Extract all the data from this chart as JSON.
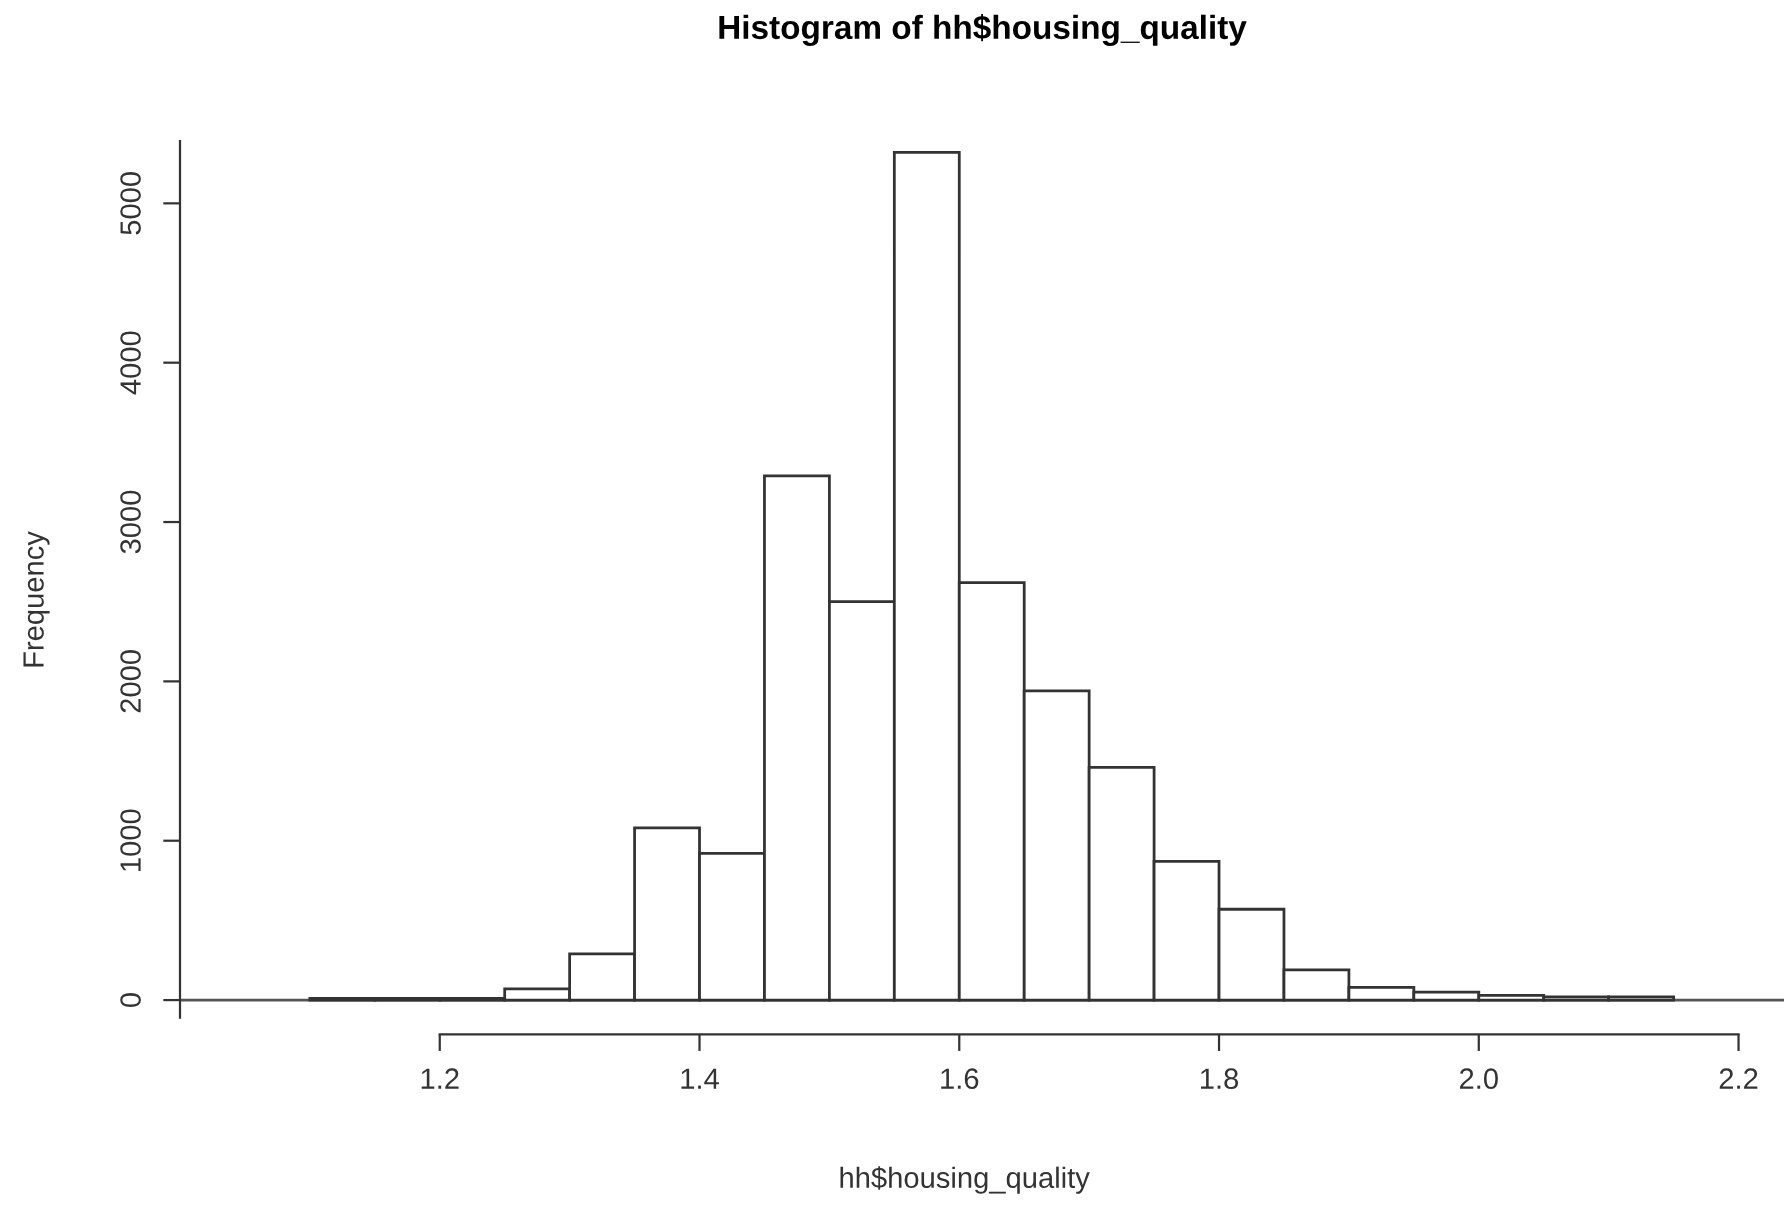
{
  "chart_data": {
    "type": "histogram",
    "title": "Histogram of hh$housing_quality",
    "xlabel": "hh$housing_quality",
    "ylabel": "Frequency",
    "bins": [
      1.1,
      1.15,
      1.2,
      1.25,
      1.3,
      1.35,
      1.4,
      1.45,
      1.5,
      1.55,
      1.6,
      1.65,
      1.7,
      1.75,
      1.8,
      1.85,
      1.9,
      1.95,
      2.0,
      2.05,
      2.1,
      2.15
    ],
    "values": [
      10,
      10,
      10,
      70,
      290,
      1080,
      920,
      3290,
      2500,
      5320,
      2620,
      1940,
      1460,
      870,
      570,
      190,
      80,
      50,
      30,
      20,
      20
    ],
    "color": "#ffffff",
    "xlim": [
      1.0,
      2.235
    ],
    "ylim": [
      -110,
      5390
    ],
    "xticks": [
      1.2,
      1.4,
      1.6,
      1.8,
      {
        "value": 2.0,
        "label": "2.0"
      },
      2.2
    ],
    "yticks": [
      0,
      1000,
      2000,
      3000,
      4000,
      5000
    ],
    "ref_lines": [
      {
        "axis": "y",
        "value": 0,
        "color": "#555555"
      }
    ],
    "grid": false
  }
}
